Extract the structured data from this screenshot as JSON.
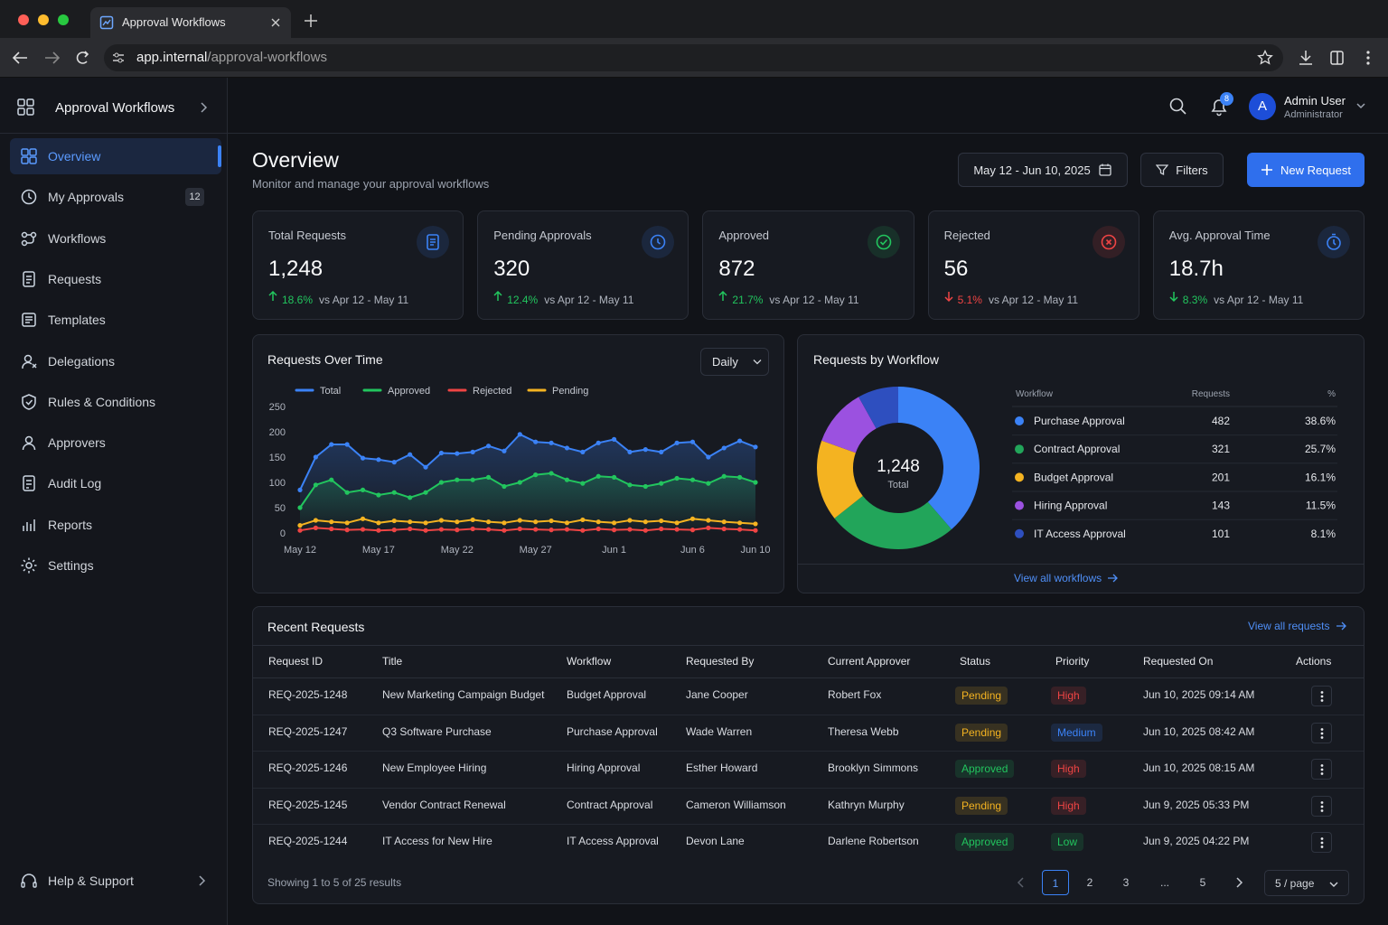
{
  "browser": {
    "tab_title": "Approval Workflows",
    "url_host": "app.internal",
    "url_path": "/approval-workflows"
  },
  "sidebar": {
    "app_name": "Approval Workflows",
    "nav": [
      {
        "label": "Overview",
        "active": true
      },
      {
        "label": "My Approvals",
        "badge": "12"
      },
      {
        "label": "Workflows"
      },
      {
        "label": "Requests"
      },
      {
        "label": "Templates"
      },
      {
        "label": "Delegations"
      },
      {
        "label": "Rules & Conditions"
      },
      {
        "label": "Approvers"
      },
      {
        "label": "Audit Log"
      },
      {
        "label": "Reports"
      },
      {
        "label": "Settings"
      }
    ],
    "help": "Help & Support"
  },
  "topbar": {
    "notifications": "8",
    "user_initial": "A",
    "user_name": "Admin User",
    "user_role": "Administrator"
  },
  "page": {
    "title": "Overview",
    "subtitle": "Monitor and manage your approval workflows",
    "date_range": "May 12 - Jun 10, 2025",
    "filters": "Filters",
    "new_request": "New Request"
  },
  "kpis": [
    {
      "label": "Total Requests",
      "value": "1,248",
      "change": "18.6%",
      "trend": "up",
      "comparison": "vs Apr 12 - May 11",
      "change_color": "#22c55e",
      "icon_color": "#3b82f6"
    },
    {
      "label": "Pending Approvals",
      "value": "320",
      "change": "12.4%",
      "trend": "up",
      "comparison": "vs Apr 12 - May 11",
      "change_color": "#22c55e",
      "icon_color": "#3b82f6"
    },
    {
      "label": "Approved",
      "value": "872",
      "change": "21.7%",
      "trend": "up",
      "comparison": "vs Apr 12 - May 11",
      "change_color": "#22c55e",
      "icon_color": "#22c55e"
    },
    {
      "label": "Rejected",
      "value": "56",
      "change": "5.1%",
      "trend": "down",
      "comparison": "vs Apr 12 - May 11",
      "change_color": "#ef4444",
      "icon_color": "#ef4444"
    },
    {
      "label": "Avg. Approval Time",
      "value": "18.7h",
      "change": "8.3%",
      "trend": "down",
      "comparison": "vs Apr 12 - May 11",
      "change_color": "#22c55e",
      "icon_color": "#3b82f6"
    }
  ],
  "chart_data": [
    {
      "type": "line",
      "title": "Requests Over Time",
      "control": "Daily",
      "categories": [
        "May 12",
        null,
        null,
        null,
        null,
        "May 17",
        null,
        null,
        null,
        null,
        "May 22",
        null,
        null,
        null,
        null,
        "May 27",
        null,
        null,
        null,
        null,
        "Jun 1",
        null,
        null,
        null,
        null,
        "Jun 6",
        null,
        null,
        null,
        "Jun 10"
      ],
      "series": [
        {
          "name": "Total",
          "color": "#3b82f6",
          "area": true,
          "values": [
            85,
            150,
            175,
            175,
            148,
            145,
            140,
            155,
            130,
            158,
            157,
            160,
            172,
            162,
            195,
            180,
            178,
            168,
            160,
            178,
            185,
            160,
            165,
            160,
            178,
            180,
            150,
            168,
            182,
            170
          ]
        },
        {
          "name": "Approved",
          "color": "#22c55e",
          "area": true,
          "values": [
            50,
            95,
            105,
            80,
            85,
            75,
            80,
            70,
            80,
            100,
            105,
            105,
            110,
            92,
            100,
            115,
            118,
            105,
            98,
            112,
            110,
            95,
            92,
            98,
            108,
            105,
            98,
            112,
            110,
            100
          ]
        },
        {
          "name": "Rejected",
          "color": "#ef4444",
          "values": [
            5,
            10,
            8,
            6,
            7,
            5,
            6,
            8,
            5,
            7,
            6,
            8,
            7,
            5,
            8,
            7,
            6,
            7,
            5,
            8,
            6,
            7,
            5,
            8,
            7,
            6,
            10,
            8,
            7,
            5
          ]
        },
        {
          "name": "Pending",
          "color": "#f4b321",
          "values": [
            15,
            25,
            22,
            20,
            28,
            20,
            24,
            22,
            20,
            25,
            22,
            26,
            22,
            20,
            25,
            22,
            24,
            20,
            26,
            22,
            20,
            25,
            22,
            24,
            20,
            28,
            25,
            22,
            20,
            18
          ]
        }
      ],
      "ylim": [
        0,
        250
      ],
      "yticks": [
        0,
        50,
        100,
        150,
        200,
        250
      ],
      "legend": "top",
      "grid": false
    },
    {
      "type": "pie",
      "title": "Requests by Workflow",
      "center_value": "1,248",
      "center_label": "Total",
      "headers": [
        "Workflow",
        "Requests",
        "%"
      ],
      "categories": [
        "Purchase Approval",
        "Contract Approval",
        "Budget Approval",
        "Hiring Approval",
        "IT Access Approval"
      ],
      "values": [
        482,
        321,
        201,
        143,
        101
      ],
      "percent_labels": [
        "38.6%",
        "25.7%",
        "16.1%",
        "11.5%",
        "8.1%"
      ],
      "colors": [
        "#3b82f6",
        "#22a55a",
        "#f4b321",
        "#9b51e0",
        "#2e4fbf"
      ],
      "link": "View all workflows"
    }
  ],
  "recent": {
    "title": "Recent Requests",
    "link": "View all requests",
    "columns": [
      "Request ID",
      "Title",
      "Workflow",
      "Requested By",
      "Current Approver",
      "Status",
      "Priority",
      "Requested On",
      "Actions"
    ],
    "rows": [
      {
        "cells": [
          "REQ-2025-1248",
          "New Marketing Campaign Budget",
          "Budget Approval",
          "Jane Cooper",
          "Robert Fox",
          "Pending",
          "High",
          "Jun 10, 2025 09:14 AM"
        ],
        "status_color": "#f4b321",
        "priority_color": "#ef4444"
      },
      {
        "cells": [
          "REQ-2025-1247",
          "Q3 Software Purchase",
          "Purchase Approval",
          "Wade Warren",
          "Theresa Webb",
          "Pending",
          "Medium",
          "Jun 10, 2025 08:42 AM"
        ],
        "status_color": "#f4b321",
        "priority_color": "#3b82f6"
      },
      {
        "cells": [
          "REQ-2025-1246",
          "New Employee Hiring",
          "Hiring Approval",
          "Esther Howard",
          "Brooklyn Simmons",
          "Approved",
          "High",
          "Jun 10, 2025 08:15 AM"
        ],
        "status_color": "#22c55e",
        "priority_color": "#ef4444"
      },
      {
        "cells": [
          "REQ-2025-1245",
          "Vendor Contract Renewal",
          "Contract Approval",
          "Cameron Williamson",
          "Kathryn Murphy",
          "Pending",
          "High",
          "Jun 9, 2025 05:33 PM"
        ],
        "status_color": "#f4b321",
        "priority_color": "#ef4444"
      },
      {
        "cells": [
          "REQ-2025-1244",
          "IT Access for New Hire",
          "IT Access Approval",
          "Devon Lane",
          "Darlene Robertson",
          "Approved",
          "Low",
          "Jun 9, 2025 04:22 PM"
        ],
        "status_color": "#22c55e",
        "priority_color": "#22c55e"
      }
    ],
    "summary": "Showing 1 to 5 of 25 results",
    "pages": [
      {
        "label": "1",
        "active": true
      },
      {
        "label": "2"
      },
      {
        "label": "3"
      },
      {
        "label": "..."
      },
      {
        "label": "5"
      }
    ],
    "page_size": "5 / page"
  }
}
